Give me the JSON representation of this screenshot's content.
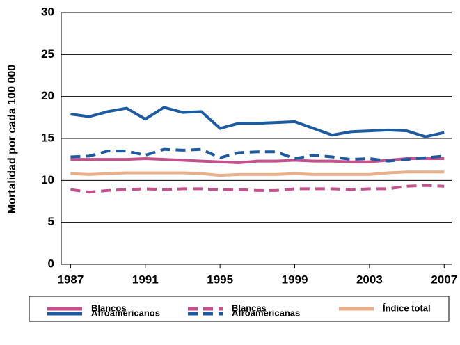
{
  "chart_data": {
    "type": "line",
    "ylabel": "Mortalidad por cada 100 000",
    "x": [
      1987,
      1988,
      1989,
      1990,
      1991,
      1992,
      1993,
      1994,
      1995,
      1996,
      1997,
      1998,
      1999,
      2000,
      2001,
      2002,
      2003,
      2004,
      2005,
      2006,
      2007
    ],
    "xlim": [
      1986.5,
      2007.4
    ],
    "xticks": [
      1987,
      1991,
      1995,
      1999,
      2003,
      2007
    ],
    "ylim": [
      0,
      30
    ],
    "yticks": [
      0,
      5,
      10,
      15,
      20,
      25,
      30
    ],
    "grid": true,
    "series": [
      {
        "name": "Blancos",
        "color": "#c4508c",
        "dashed": false,
        "values": [
          12.5,
          12.5,
          12.5,
          12.5,
          12.6,
          12.5,
          12.4,
          12.3,
          12.2,
          12.1,
          12.3,
          12.3,
          12.4,
          12.3,
          12.3,
          12.2,
          12.2,
          12.4,
          12.6,
          12.6,
          12.6
        ]
      },
      {
        "name": "Blancas",
        "color": "#c4508c",
        "dashed": true,
        "values": [
          8.9,
          8.6,
          8.8,
          8.9,
          9.0,
          8.9,
          9.0,
          9.0,
          8.9,
          8.9,
          8.8,
          8.8,
          9.0,
          9.0,
          9.0,
          8.9,
          9.0,
          9.0,
          9.3,
          9.4,
          9.3
        ]
      },
      {
        "name": "Índice total",
        "color": "#e8b08a",
        "dashed": false,
        "values": [
          10.8,
          10.7,
          10.8,
          10.9,
          10.9,
          10.9,
          10.9,
          10.8,
          10.6,
          10.7,
          10.7,
          10.7,
          10.8,
          10.7,
          10.7,
          10.7,
          10.7,
          10.9,
          11.0,
          11.0,
          11.0
        ]
      },
      {
        "name": "Afroamericanos",
        "color": "#1c5aa2",
        "dashed": false,
        "values": [
          17.9,
          17.6,
          18.2,
          18.6,
          17.3,
          18.7,
          18.1,
          18.2,
          16.2,
          16.8,
          16.8,
          16.9,
          17.0,
          16.2,
          15.4,
          15.8,
          15.9,
          16.0,
          15.9,
          15.2,
          15.7
        ]
      },
      {
        "name": "Afroamericanas",
        "color": "#1c5aa2",
        "dashed": true,
        "values": [
          12.8,
          12.9,
          13.5,
          13.5,
          13.0,
          13.7,
          13.6,
          13.7,
          12.7,
          13.3,
          13.4,
          13.4,
          12.6,
          13.0,
          12.8,
          12.5,
          12.6,
          12.3,
          12.5,
          12.7,
          12.9
        ]
      }
    ]
  }
}
